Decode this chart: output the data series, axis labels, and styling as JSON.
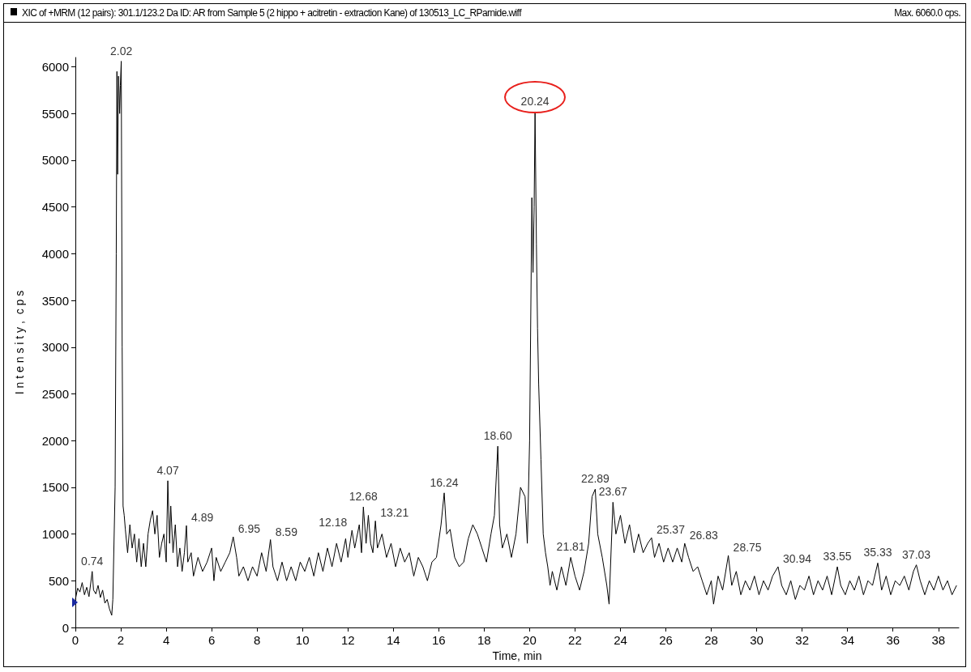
{
  "chart_data": {
    "type": "line",
    "title": "XIC of +MRM (12 pairs): 301.1/123.2 Da ID: AR from Sample 5 (2 hippo + acitretin - extraction Kane) of 130513_LC_RParnide.wiff",
    "subtitle": "Max. 6060.0 cps.",
    "xlabel": "Time, min",
    "ylabel": "I n t e n s i t y ,  c p s",
    "x": [
      0,
      0.1,
      0.2,
      0.3,
      0.4,
      0.5,
      0.6,
      0.7,
      0.74,
      0.8,
      0.9,
      1.0,
      1.1,
      1.2,
      1.3,
      1.4,
      1.5,
      1.6,
      1.65,
      1.75,
      1.8,
      1.83,
      1.86,
      1.9,
      1.95,
      1.98,
      2.02,
      2.06,
      2.1,
      2.15,
      2.2,
      2.3,
      2.4,
      2.5,
      2.6,
      2.7,
      2.8,
      2.9,
      3.0,
      3.1,
      3.2,
      3.3,
      3.4,
      3.5,
      3.6,
      3.7,
      3.8,
      3.9,
      4.0,
      4.07,
      4.15,
      4.2,
      4.3,
      4.4,
      4.5,
      4.6,
      4.7,
      4.8,
      4.89,
      4.95,
      5.1,
      5.2,
      5.4,
      5.6,
      5.8,
      6.0,
      6.1,
      6.2,
      6.4,
      6.6,
      6.8,
      6.95,
      7.1,
      7.2,
      7.4,
      7.6,
      7.8,
      8.0,
      8.2,
      8.4,
      8.59,
      8.7,
      8.9,
      9.1,
      9.3,
      9.5,
      9.7,
      9.9,
      10.1,
      10.3,
      10.5,
      10.7,
      10.9,
      11.1,
      11.3,
      11.5,
      11.7,
      11.9,
      12.0,
      12.18,
      12.3,
      12.5,
      12.6,
      12.68,
      12.8,
      12.9,
      13.0,
      13.1,
      13.21,
      13.3,
      13.5,
      13.7,
      13.9,
      14.1,
      14.3,
      14.5,
      14.7,
      14.9,
      15.1,
      15.3,
      15.5,
      15.7,
      15.9,
      16.1,
      16.24,
      16.35,
      16.5,
      16.7,
      16.9,
      17.1,
      17.3,
      17.5,
      17.7,
      17.9,
      18.1,
      18.3,
      18.45,
      18.55,
      18.6,
      18.68,
      18.8,
      19.0,
      19.2,
      19.4,
      19.6,
      19.8,
      19.9,
      20.0,
      20.1,
      20.15,
      20.2,
      20.24,
      20.3,
      20.35,
      20.4,
      20.5,
      20.6,
      20.7,
      20.8,
      20.9,
      21.0,
      21.2,
      21.4,
      21.6,
      21.81,
      22.0,
      22.2,
      22.4,
      22.6,
      22.75,
      22.89,
      23.0,
      23.2,
      23.4,
      23.5,
      23.67,
      23.8,
      24.0,
      24.2,
      24.4,
      24.6,
      24.8,
      25.0,
      25.2,
      25.37,
      25.5,
      25.7,
      25.9,
      26.1,
      26.3,
      26.5,
      26.7,
      26.83,
      27.0,
      27.2,
      27.4,
      27.6,
      27.8,
      28.0,
      28.1,
      28.3,
      28.5,
      28.75,
      28.9,
      29.1,
      29.3,
      29.5,
      29.7,
      29.9,
      30.1,
      30.3,
      30.5,
      30.7,
      30.94,
      31.1,
      31.3,
      31.5,
      31.7,
      31.9,
      32.1,
      32.3,
      32.5,
      32.7,
      32.9,
      33.1,
      33.3,
      33.55,
      33.7,
      33.9,
      34.1,
      34.3,
      34.5,
      34.7,
      34.9,
      35.1,
      35.33,
      35.5,
      35.7,
      35.9,
      36.1,
      36.3,
      36.5,
      36.7,
      36.9,
      37.03,
      37.2,
      37.4,
      37.6,
      37.8,
      38.0,
      38.2,
      38.4,
      38.6,
      38.8
    ],
    "series": [
      {
        "color": "#000000",
        "values": [
          300,
          420,
          380,
          480,
          350,
          430,
          330,
          520,
          600,
          400,
          360,
          450,
          320,
          400,
          260,
          300,
          200,
          130,
          300,
          1500,
          4000,
          5950,
          4850,
          5900,
          5500,
          5800,
          6060,
          3000,
          1300,
          1200,
          1050,
          800,
          1100,
          850,
          1000,
          700,
          950,
          650,
          900,
          650,
          1000,
          1150,
          1250,
          1000,
          1200,
          750,
          900,
          1000,
          700,
          1570,
          900,
          1300,
          800,
          1100,
          650,
          850,
          600,
          800,
          1090,
          700,
          800,
          550,
          750,
          600,
          700,
          850,
          500,
          750,
          600,
          700,
          800,
          970,
          750,
          550,
          650,
          500,
          650,
          550,
          800,
          600,
          940,
          650,
          500,
          700,
          500,
          650,
          500,
          700,
          600,
          750,
          550,
          800,
          600,
          850,
          650,
          900,
          700,
          950,
          750,
          1040,
          850,
          1100,
          800,
          1290,
          900,
          1200,
          900,
          800,
          1140,
          850,
          1000,
          750,
          900,
          650,
          850,
          700,
          800,
          550,
          750,
          650,
          500,
          700,
          750,
          1100,
          1440,
          1000,
          1050,
          750,
          650,
          700,
          950,
          1100,
          1000,
          850,
          700,
          1000,
          1200,
          1700,
          1940,
          1100,
          850,
          1000,
          750,
          1000,
          1500,
          1400,
          900,
          2000,
          4600,
          3800,
          4500,
          5520,
          4100,
          3200,
          2600,
          1800,
          1000,
          800,
          650,
          450,
          600,
          400,
          650,
          450,
          750,
          550,
          400,
          600,
          900,
          1400,
          1480,
          1000,
          750,
          450,
          250,
          1340,
          1000,
          1200,
          900,
          1100,
          800,
          1000,
          800,
          900,
          960,
          750,
          900,
          700,
          850,
          700,
          850,
          700,
          900,
          750,
          600,
          650,
          500,
          350,
          500,
          250,
          550,
          400,
          770,
          450,
          600,
          350,
          500,
          400,
          550,
          350,
          500,
          400,
          550,
          650,
          450,
          350,
          500,
          300,
          450,
          400,
          550,
          350,
          500,
          400,
          550,
          350,
          650,
          450,
          350,
          500,
          400,
          550,
          350,
          500,
          450,
          690,
          400,
          550,
          350,
          500,
          450,
          550,
          400,
          600,
          670,
          500,
          350,
          500,
          400,
          550,
          400,
          500,
          350,
          450
        ]
      }
    ],
    "xlim": [
      0,
      38.9
    ],
    "ylim": [
      0,
      6100
    ],
    "xticks": [
      0,
      2,
      4,
      6,
      8,
      10,
      12,
      14,
      16,
      18,
      20,
      22,
      24,
      26,
      28,
      30,
      32,
      34,
      36,
      38
    ],
    "yticks": [
      0,
      500,
      1000,
      1500,
      2000,
      2500,
      3000,
      3500,
      4000,
      4500,
      5000,
      5500,
      6000
    ],
    "marker": "none",
    "line_style": "solid",
    "annotations": [
      {
        "text": "0.74",
        "x": 0.74,
        "y": 600
      },
      {
        "text": "2.02",
        "x": 2.02,
        "y": 6060
      },
      {
        "text": "4.07",
        "x": 4.07,
        "y": 1570
      },
      {
        "text": "4.89",
        "x": 4.89,
        "y": 1090
      },
      {
        "text": "6.95",
        "x": 6.95,
        "y": 970
      },
      {
        "text": "8.59",
        "x": 8.59,
        "y": 940
      },
      {
        "text": "12.18",
        "x": 12.18,
        "y": 1040
      },
      {
        "text": "12.68",
        "x": 12.68,
        "y": 1290
      },
      {
        "text": "13.21",
        "x": 13.21,
        "y": 1140
      },
      {
        "text": "16.24",
        "x": 16.24,
        "y": 1440
      },
      {
        "text": "18.60",
        "x": 18.6,
        "y": 1940
      },
      {
        "text": "20.24",
        "x": 20.24,
        "y": 5520
      },
      {
        "text": "21.81",
        "x": 21.81,
        "y": 750
      },
      {
        "text": "22.89",
        "x": 22.89,
        "y": 1480
      },
      {
        "text": "23.67",
        "x": 23.67,
        "y": 1340
      },
      {
        "text": "25.37",
        "x": 25.37,
        "y": 960
      },
      {
        "text": "26.83",
        "x": 26.83,
        "y": 900
      },
      {
        "text": "28.75",
        "x": 28.75,
        "y": 770
      },
      {
        "text": "30.94",
        "x": 30.94,
        "y": 650
      },
      {
        "text": "33.55",
        "x": 33.55,
        "y": 650
      },
      {
        "text": "35.33",
        "x": 35.33,
        "y": 690
      },
      {
        "text": "37.03",
        "x": 37.03,
        "y": 670
      }
    ]
  }
}
